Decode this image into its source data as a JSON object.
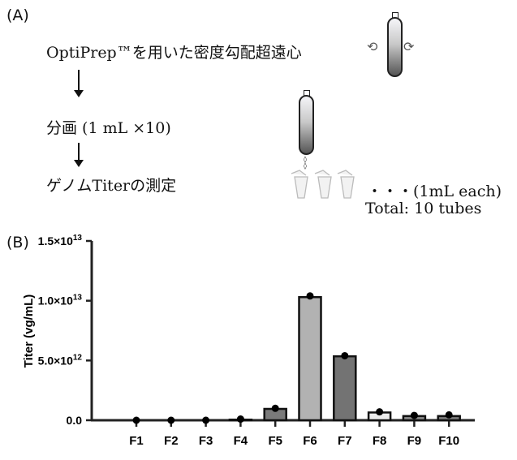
{
  "panel_a": {
    "label": "(A)",
    "steps": [
      "OptiPrep™を用いた密度勾配超遠心",
      "分画 (1 mL ×10)",
      "ゲノムTiterの測定"
    ],
    "fraction_note": "・・・(1mL each)",
    "total_note": "Total: 10 tubes"
  },
  "panel_b": {
    "label": "(B)"
  },
  "chart_data": {
    "type": "bar",
    "title": "",
    "xlabel": "",
    "ylabel": "Titer (vg/mL)",
    "categories": [
      "F1",
      "F2",
      "F3",
      "F4",
      "F5",
      "F6",
      "F7",
      "F8",
      "F9",
      "F10"
    ],
    "values": [
      0,
      0,
      0,
      50000000000.0,
      950000000000.0,
      10300000000000.0,
      5350000000000.0,
      650000000000.0,
      350000000000.0,
      350000000000.0
    ],
    "points": [
      0,
      0,
      0,
      100000000000.0,
      1000000000000.0,
      10400000000000.0,
      5400000000000.0,
      700000000000.0,
      400000000000.0,
      450000000000.0
    ],
    "bar_colors": [
      "#ffffff",
      "#ffffff",
      "#ffffff",
      "#dddddd",
      "#7a7a7a",
      "#b2b2b2",
      "#737373",
      "#ececec",
      "#8a8a8a",
      "#7a7a7a"
    ],
    "ylim": [
      0,
      15000000000000.0
    ],
    "yticks": [
      0,
      5000000000000.0,
      10000000000000.0,
      15000000000000.0
    ],
    "ytick_labels": [
      {
        "mant": "0.0",
        "exp": ""
      },
      {
        "mant": "5.0×10",
        "exp": "12"
      },
      {
        "mant": "1.0×10",
        "exp": "13"
      },
      {
        "mant": "1.5×10",
        "exp": "13"
      }
    ],
    "grid": false,
    "legend": "none"
  }
}
